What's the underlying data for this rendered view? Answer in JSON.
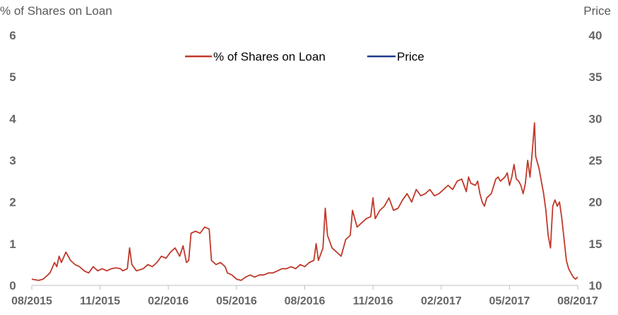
{
  "chart_data": {
    "type": "line",
    "y_left_label": "% of Shares on Loan",
    "y_right_label": "Price",
    "y_left_ticks": [
      "0",
      "1",
      "2",
      "3",
      "4",
      "5",
      "6"
    ],
    "y_right_ticks": [
      "10",
      "15",
      "20",
      "25",
      "30",
      "35",
      "40"
    ],
    "ylim_left": [
      0,
      6
    ],
    "ylim_right": [
      10,
      40
    ],
    "x_ticks": [
      "08/2015",
      "11/2015",
      "02/2016",
      "05/2016",
      "08/2016",
      "11/2016",
      "02/2017",
      "05/2017",
      "08/2017"
    ],
    "xlim": [
      0,
      24
    ],
    "grid": false,
    "legend_position": "top-center",
    "series": [
      {
        "name": "% of Shares on Loan",
        "axis": "left",
        "color": "#c0392b",
        "points": [
          [
            0,
            0.15
          ],
          [
            0.3,
            0.12
          ],
          [
            0.5,
            0.15
          ],
          [
            0.8,
            0.3
          ],
          [
            1.0,
            0.55
          ],
          [
            1.1,
            0.45
          ],
          [
            1.2,
            0.7
          ],
          [
            1.3,
            0.55
          ],
          [
            1.5,
            0.8
          ],
          [
            1.7,
            0.6
          ],
          [
            1.9,
            0.5
          ],
          [
            2.1,
            0.45
          ],
          [
            2.3,
            0.35
          ],
          [
            2.5,
            0.3
          ],
          [
            2.7,
            0.45
          ],
          [
            2.9,
            0.35
          ],
          [
            3.1,
            0.4
          ],
          [
            3.3,
            0.35
          ],
          [
            3.5,
            0.4
          ],
          [
            3.7,
            0.42
          ],
          [
            3.9,
            0.4
          ],
          [
            4.0,
            0.35
          ],
          [
            4.2,
            0.4
          ],
          [
            4.3,
            0.9
          ],
          [
            4.4,
            0.5
          ],
          [
            4.6,
            0.35
          ],
          [
            4.9,
            0.4
          ],
          [
            5.1,
            0.5
          ],
          [
            5.3,
            0.45
          ],
          [
            5.5,
            0.55
          ],
          [
            5.7,
            0.7
          ],
          [
            5.9,
            0.65
          ],
          [
            6.1,
            0.8
          ],
          [
            6.3,
            0.9
          ],
          [
            6.5,
            0.7
          ],
          [
            6.65,
            0.95
          ],
          [
            6.8,
            0.55
          ],
          [
            6.9,
            0.6
          ],
          [
            7.0,
            1.25
          ],
          [
            7.2,
            1.3
          ],
          [
            7.4,
            1.25
          ],
          [
            7.6,
            1.4
          ],
          [
            7.8,
            1.35
          ],
          [
            7.9,
            0.6
          ],
          [
            8.1,
            0.5
          ],
          [
            8.3,
            0.55
          ],
          [
            8.5,
            0.45
          ],
          [
            8.6,
            0.3
          ],
          [
            8.8,
            0.25
          ],
          [
            9.0,
            0.15
          ],
          [
            9.2,
            0.12
          ],
          [
            9.4,
            0.2
          ],
          [
            9.6,
            0.25
          ],
          [
            9.8,
            0.2
          ],
          [
            10.0,
            0.25
          ],
          [
            10.2,
            0.25
          ],
          [
            10.4,
            0.3
          ],
          [
            10.6,
            0.3
          ],
          [
            10.8,
            0.35
          ],
          [
            11.0,
            0.4
          ],
          [
            11.2,
            0.4
          ],
          [
            11.4,
            0.45
          ],
          [
            11.6,
            0.4
          ],
          [
            11.8,
            0.5
          ],
          [
            12.0,
            0.45
          ],
          [
            12.2,
            0.55
          ],
          [
            12.4,
            0.6
          ],
          [
            12.5,
            1.0
          ],
          [
            12.6,
            0.6
          ],
          [
            12.8,
            0.9
          ],
          [
            12.9,
            1.85
          ],
          [
            13.0,
            1.2
          ],
          [
            13.2,
            0.9
          ],
          [
            13.4,
            0.8
          ],
          [
            13.6,
            0.7
          ],
          [
            13.8,
            1.1
          ],
          [
            14.0,
            1.2
          ],
          [
            14.1,
            1.8
          ],
          [
            14.3,
            1.4
          ],
          [
            14.5,
            1.5
          ],
          [
            14.7,
            1.6
          ],
          [
            14.9,
            1.65
          ],
          [
            15.0,
            2.1
          ],
          [
            15.1,
            1.6
          ],
          [
            15.3,
            1.8
          ],
          [
            15.5,
            1.9
          ],
          [
            15.7,
            2.1
          ],
          [
            15.9,
            1.8
          ],
          [
            16.1,
            1.85
          ],
          [
            16.3,
            2.05
          ],
          [
            16.5,
            2.2
          ],
          [
            16.7,
            2.0
          ],
          [
            16.9,
            2.3
          ],
          [
            17.1,
            2.15
          ],
          [
            17.3,
            2.2
          ],
          [
            17.5,
            2.3
          ],
          [
            17.7,
            2.15
          ],
          [
            17.9,
            2.2
          ],
          [
            18.1,
            2.3
          ],
          [
            18.3,
            2.4
          ],
          [
            18.5,
            2.3
          ],
          [
            18.7,
            2.5
          ],
          [
            18.9,
            2.55
          ],
          [
            19.0,
            2.4
          ],
          [
            19.1,
            2.25
          ],
          [
            19.2,
            2.6
          ],
          [
            19.3,
            2.45
          ],
          [
            19.5,
            2.4
          ],
          [
            19.6,
            2.5
          ],
          [
            19.7,
            2.2
          ],
          [
            19.8,
            2.0
          ],
          [
            19.9,
            1.9
          ],
          [
            20.0,
            2.1
          ],
          [
            20.2,
            2.2
          ],
          [
            20.4,
            2.55
          ],
          [
            20.5,
            2.6
          ],
          [
            20.6,
            2.5
          ],
          [
            20.8,
            2.6
          ],
          [
            20.9,
            2.7
          ],
          [
            21.0,
            2.4
          ],
          [
            21.1,
            2.6
          ],
          [
            21.2,
            2.9
          ],
          [
            21.3,
            2.55
          ],
          [
            21.4,
            2.5
          ],
          [
            21.5,
            2.4
          ],
          [
            21.6,
            2.2
          ],
          [
            21.7,
            2.45
          ],
          [
            21.8,
            3.0
          ],
          [
            21.9,
            2.6
          ],
          [
            22.0,
            3.2
          ],
          [
            22.1,
            3.9
          ],
          [
            22.15,
            3.1
          ],
          [
            22.3,
            2.8
          ],
          [
            22.5,
            2.2
          ],
          [
            22.6,
            1.8
          ],
          [
            22.7,
            1.2
          ],
          [
            22.8,
            0.9
          ],
          [
            22.9,
            1.9
          ],
          [
            23.0,
            2.05
          ],
          [
            23.1,
            1.9
          ],
          [
            23.2,
            2.0
          ],
          [
            23.3,
            1.6
          ],
          [
            23.4,
            1.1
          ],
          [
            23.5,
            0.6
          ],
          [
            23.6,
            0.4
          ],
          [
            23.7,
            0.3
          ],
          [
            23.8,
            0.2
          ],
          [
            23.9,
            0.15
          ],
          [
            24.0,
            0.2
          ]
        ]
      },
      {
        "name": "Price",
        "axis": "right",
        "color": "#1f3a8a",
        "points": []
      }
    ]
  }
}
